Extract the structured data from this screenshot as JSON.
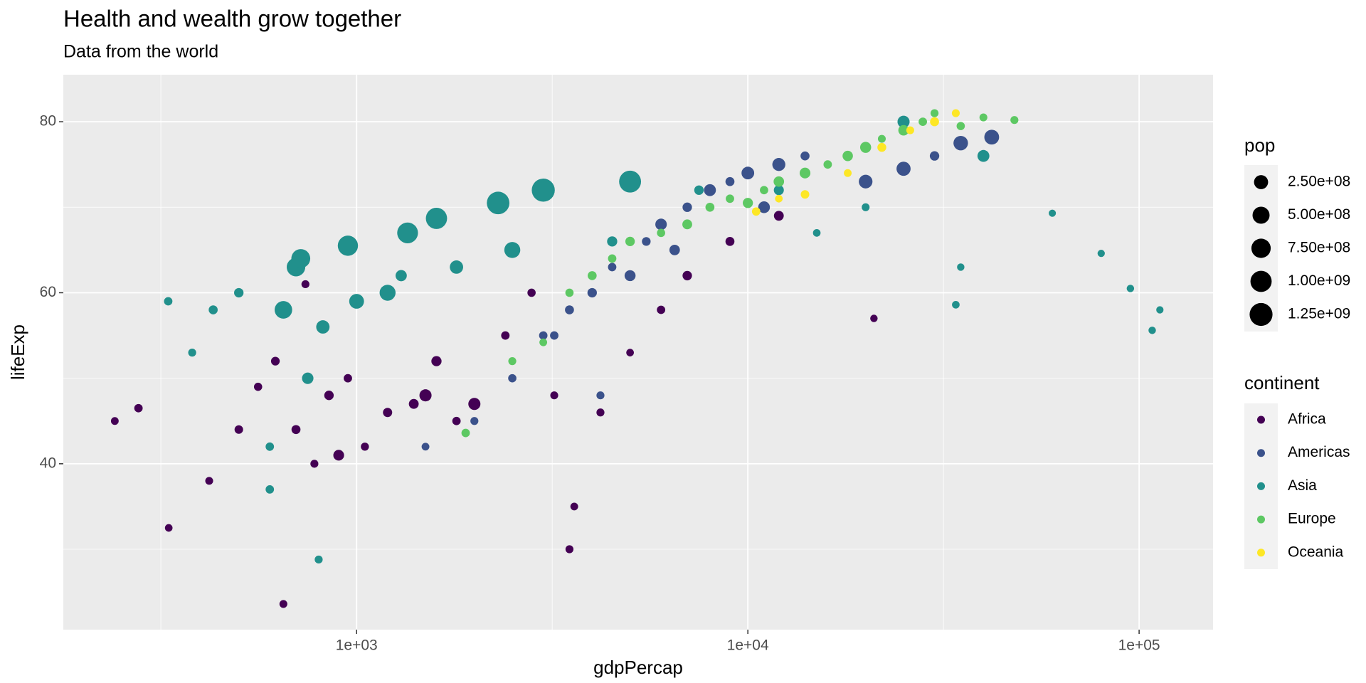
{
  "chart_data": {
    "type": "scatter",
    "title": "Health and wealth grow together",
    "subtitle": "Data from the world",
    "x_label": "gdpPercap",
    "y_label": "lifeExp",
    "xscale": "log",
    "xlim": [
      178,
      154500
    ],
    "ylim": [
      20.6,
      85.5
    ],
    "xticks": [
      {
        "value": 1000,
        "label": "1e+03"
      },
      {
        "value": 10000,
        "label": "1e+04"
      },
      {
        "value": 100000,
        "label": "1e+05"
      }
    ],
    "x_minor_ticks": [
      316,
      3162,
      31623
    ],
    "yticks": [
      40,
      60,
      80
    ],
    "y_minor_ticks": [
      30,
      50,
      70
    ],
    "grid": true,
    "legend_position": "right",
    "size_legend": {
      "title": "pop",
      "breaks": [
        {
          "value": 250000000,
          "label": "2.50e+08"
        },
        {
          "value": 500000000,
          "label": "5.00e+08"
        },
        {
          "value": 750000000,
          "label": "7.50e+08"
        },
        {
          "value": 1000000000,
          "label": "1.00e+09"
        },
        {
          "value": 1250000000,
          "label": "1.25e+09"
        }
      ]
    },
    "color_legend": {
      "title": "continent"
    },
    "series": [
      {
        "name": "Africa",
        "color": "#440154",
        "x": [
          241,
          277,
          331,
          420,
          500,
          560,
          620,
          700,
          780,
          850,
          950,
          1050,
          1200,
          1400,
          1600,
          1800,
          2000,
          2400,
          2800,
          3200,
          3600,
          4200,
          5000,
          6000,
          7000,
          9000,
          12000,
          21000,
          3500,
          650,
          900,
          1500,
          740
        ],
        "y": [
          45,
          46.5,
          32.5,
          38,
          44,
          49,
          52,
          44,
          40,
          48,
          50,
          42,
          46,
          47,
          52,
          45,
          47,
          55,
          60,
          48,
          35,
          46,
          53,
          58,
          62,
          66,
          69,
          57,
          30,
          23.6,
          41,
          48,
          61
        ],
        "size": [
          3000000,
          10000000,
          2000000,
          4000000,
          12000000,
          8000000,
          15000000,
          20000000,
          5000000,
          30000000,
          10000000,
          6000000,
          25000000,
          40000000,
          50000000,
          10000000,
          130000000,
          10000000,
          8000000,
          4000000,
          3000000,
          5000000,
          2000000,
          10000000,
          30000000,
          20000000,
          40000000,
          1000000,
          5000000,
          4000000,
          70000000,
          130000000,
          5000000
        ]
      },
      {
        "name": "Americas",
        "color": "#3B528B",
        "x": [
          1500,
          2000,
          2500,
          3000,
          3500,
          4000,
          4500,
          5000,
          5500,
          6000,
          7000,
          8000,
          9000,
          10000,
          12000,
          14000,
          20000,
          25000,
          30000,
          35000,
          42000,
          3200,
          4200,
          6500,
          11000
        ],
        "y": [
          42,
          45,
          50,
          55,
          58,
          60,
          63,
          62,
          66,
          68,
          70,
          72,
          73,
          74,
          75,
          76,
          73,
          74.5,
          76,
          77.5,
          78.2,
          55,
          48,
          65,
          70
        ],
        "size": [
          3000000,
          5000000,
          8000000,
          10000000,
          20000000,
          30000000,
          10000000,
          80000000,
          15000000,
          100000000,
          30000000,
          120000000,
          20000000,
          160000000,
          180000000,
          20000000,
          220000000,
          250000000,
          30000000,
          280000000,
          300000000,
          10000000,
          5000000,
          60000000,
          110000000
        ]
      },
      {
        "name": "Asia",
        "color": "#21908C",
        "x": [
          330,
          380,
          430,
          500,
          600,
          650,
          700,
          720,
          750,
          820,
          950,
          1000,
          1200,
          1350,
          1600,
          1800,
          2300,
          2500,
          3000,
          5000,
          800,
          1300,
          4500,
          7500,
          15000,
          20000,
          35000,
          60000,
          80000,
          95000,
          108000,
          113000,
          34000,
          40000,
          25000,
          12000,
          600
        ],
        "y": [
          59,
          53,
          58,
          60,
          37,
          58,
          63,
          64,
          50,
          56,
          65.5,
          59,
          60,
          67,
          68.7,
          63,
          70.5,
          65,
          72,
          73,
          28.8,
          62,
          66,
          72,
          67,
          70,
          63,
          69.3,
          64.6,
          60.5,
          55.6,
          58,
          58.6,
          76,
          80,
          72,
          42
        ],
        "size": [
          10000000,
          5000000,
          20000000,
          30000000,
          10000000,
          550000000,
          660000000,
          700000000,
          100000000,
          200000000,
          860000000,
          300000000,
          400000000,
          940000000,
          1000000000,
          200000000,
          1200000000,
          400000000,
          1270000000,
          1100000000,
          5000000,
          90000000,
          50000000,
          30000000,
          2000000,
          4000000,
          1000000,
          200000,
          500000,
          1000000,
          1000000,
          500000,
          2000000,
          120000000,
          130000000,
          45000000,
          10000000
        ]
      },
      {
        "name": "Europe",
        "color": "#5DC863",
        "x": [
          1900,
          2500,
          3000,
          3500,
          4000,
          4500,
          5000,
          6000,
          7000,
          8000,
          9000,
          10000,
          11000,
          12000,
          14000,
          16000,
          18000,
          20000,
          22000,
          25000,
          28000,
          30000,
          35000,
          40000,
          48000
        ],
        "y": [
          43.6,
          52,
          54.2,
          60,
          62,
          64,
          66,
          67,
          68,
          70,
          71,
          70.5,
          72,
          73,
          74,
          75,
          76,
          77,
          78,
          79,
          80,
          81,
          79.5,
          80.5,
          80.2
        ],
        "size": [
          10000000,
          5000000,
          3000000,
          8000000,
          20000000,
          10000000,
          30000000,
          8000000,
          40000000,
          20000000,
          10000000,
          50000000,
          9000000,
          60000000,
          70000000,
          10000000,
          57000000,
          80000000,
          4000000,
          60000000,
          10000000,
          5000000,
          8000000,
          4000000,
          5000000
        ]
      },
      {
        "name": "Oceania",
        "color": "#FDE725",
        "x": [
          10500,
          12000,
          14000,
          18000,
          22000,
          26000,
          30000,
          34000
        ],
        "y": [
          69.5,
          71,
          71.5,
          74,
          77,
          79,
          80,
          81
        ],
        "size": [
          10000000,
          2000000,
          12000000,
          3000000,
          18000000,
          4000000,
          20000000,
          4000000
        ]
      }
    ]
  }
}
